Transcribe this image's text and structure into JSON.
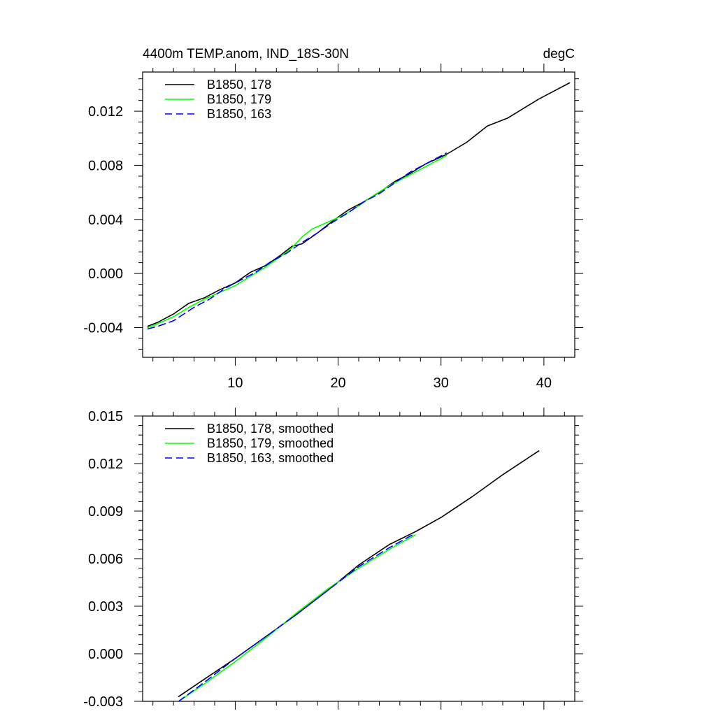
{
  "chart_data": [
    {
      "type": "line",
      "title_left": "4400m TEMP.anom, IND_18S-30N",
      "title_right": "degC",
      "xlim": [
        1,
        43
      ],
      "ylim": [
        -0.0062,
        0.0149
      ],
      "x_ticks": [
        10,
        20,
        30,
        40
      ],
      "x_tick_labels": [
        "10",
        "20",
        "30",
        "40"
      ],
      "y_ticks": [
        -0.004,
        0.0,
        0.004,
        0.008,
        0.012
      ],
      "y_tick_labels": [
        "-0.004",
        "0.000",
        "0.004",
        "0.008",
        "0.012"
      ],
      "legend_position": "top-left",
      "series": [
        {
          "name": "B1850, 178",
          "color": "#000000",
          "dash": "solid",
          "x": [
            1.5,
            2.5,
            4,
            5.5,
            7,
            8.5,
            10,
            11.5,
            13,
            14.5,
            15.5,
            16.5,
            18,
            19.5,
            21,
            22.5,
            24,
            25.5,
            27,
            28.5,
            30.5,
            32.5,
            34.5,
            36.5,
            38,
            39.5,
            41,
            42.5
          ],
          "y": [
            -0.0039,
            -0.0036,
            -0.003,
            -0.0022,
            -0.0018,
            -0.0012,
            -0.0007,
            0.0001,
            0.0006,
            0.0014,
            0.002,
            0.0022,
            0.003,
            0.0039,
            0.0047,
            0.0053,
            0.006,
            0.0068,
            0.0074,
            0.0081,
            0.0088,
            0.0097,
            0.0109,
            0.0115,
            0.0122,
            0.0129,
            0.0135,
            0.0141
          ]
        },
        {
          "name": "B1850, 179",
          "color": "#00ff00",
          "dash": "solid",
          "x": [
            1.5,
            2.5,
            4,
            5.5,
            7,
            8.5,
            10,
            11.5,
            13,
            14.5,
            15.5,
            16.5,
            17.5,
            19,
            20.5,
            22,
            23.5,
            25,
            26.5,
            28,
            30.5
          ],
          "y": [
            -0.004,
            -0.0037,
            -0.0032,
            -0.0025,
            -0.0019,
            -0.0014,
            -0.0009,
            -0.0002,
            0.0005,
            0.0013,
            0.0019,
            0.0027,
            0.0033,
            0.0038,
            0.0043,
            0.005,
            0.0058,
            0.0065,
            0.0071,
            0.0077,
            0.0087
          ]
        },
        {
          "name": "B1850, 163",
          "color": "#0000ff",
          "dash": "dashed",
          "x": [
            1.5,
            2.5,
            4,
            6,
            7.5,
            9,
            10.5,
            12,
            13.5,
            15,
            16.5,
            18,
            19.5,
            21,
            22.5,
            24,
            25.5,
            27,
            28.5,
            30.5
          ],
          "y": [
            -0.0041,
            -0.0039,
            -0.0035,
            -0.0025,
            -0.0019,
            -0.0011,
            -0.0005,
            0.0001,
            0.0009,
            0.0015,
            0.0023,
            0.003,
            0.0038,
            0.0045,
            0.0053,
            0.0059,
            0.0067,
            0.0075,
            0.0081,
            0.0089
          ]
        }
      ]
    },
    {
      "type": "line",
      "xlim": [
        1,
        43
      ],
      "ylim": [
        -0.003,
        0.015
      ],
      "x_ticks": [
        10,
        20,
        30,
        40
      ],
      "y_ticks": [
        -0.003,
        0.0,
        0.003,
        0.006,
        0.009,
        0.012,
        0.015
      ],
      "y_tick_labels": [
        "-0.003",
        "0.000",
        "0.003",
        "0.006",
        "0.009",
        "0.012",
        "0.015"
      ],
      "legend_position": "top-left",
      "series": [
        {
          "name": "B1850, 178, smoothed",
          "color": "#000000",
          "dash": "solid",
          "x": [
            4.5,
            7,
            10,
            13,
            16,
            19,
            22,
            25,
            27.5,
            30,
            33,
            36,
            39.5
          ],
          "y": [
            -0.0027,
            -0.0016,
            -0.0003,
            0.0011,
            0.0025,
            0.004,
            0.0056,
            0.0069,
            0.0077,
            0.0086,
            0.0099,
            0.0113,
            0.0128
          ]
        },
        {
          "name": "B1850, 179, smoothed",
          "color": "#00ff00",
          "dash": "solid",
          "x": [
            4.5,
            7,
            10,
            13,
            16,
            19,
            22,
            25,
            27.5
          ],
          "y": [
            -0.003,
            -0.0019,
            -0.0005,
            0.001,
            0.0026,
            0.0041,
            0.0054,
            0.0066,
            0.0075
          ]
        },
        {
          "name": "B1850, 163, smoothed",
          "color": "#0000ff",
          "dash": "dashed",
          "x": [
            4.5,
            7,
            10,
            13,
            16,
            19,
            22,
            25,
            27.5
          ],
          "y": [
            -0.003,
            -0.0018,
            -0.0003,
            0.0011,
            0.0025,
            0.004,
            0.0055,
            0.0067,
            0.0076
          ]
        }
      ]
    }
  ]
}
